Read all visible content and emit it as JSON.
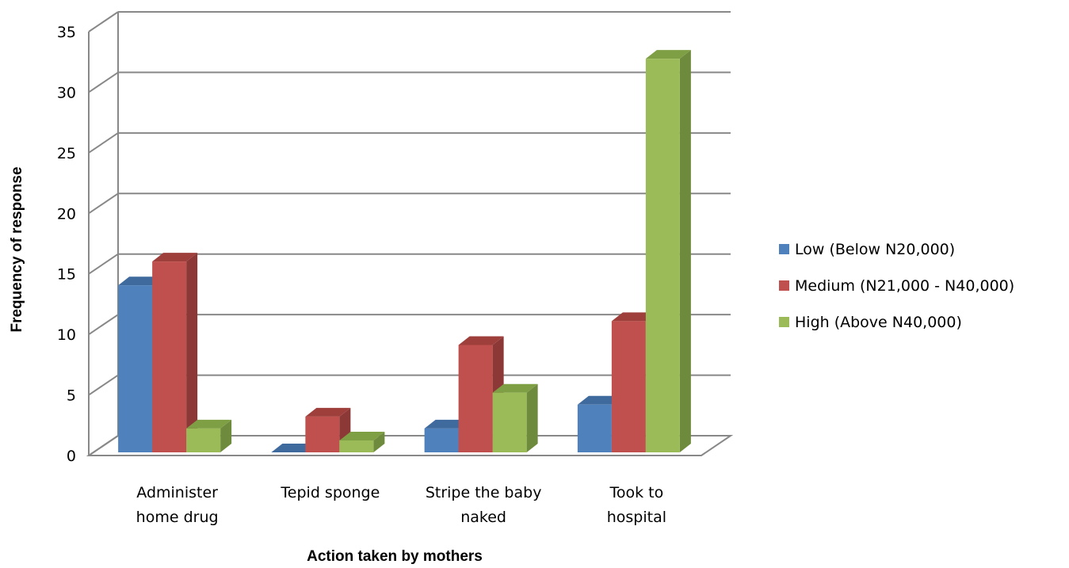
{
  "chart_data": {
    "type": "bar",
    "categories": [
      [
        "Administer",
        "home drug"
      ],
      [
        "Tepid sponge"
      ],
      [
        "Stripe the baby",
        "naked"
      ],
      [
        "Took to",
        "hospital"
      ]
    ],
    "series": [
      {
        "name": "Low (Below N20,000)",
        "values": [
          14,
          0,
          2,
          4
        ],
        "color": "#4f81bd",
        "side_color": "#385d8a",
        "top_color": "#3f6a9e"
      },
      {
        "name": "Medium (N21,000 - N40,000)",
        "values": [
          16,
          3,
          9,
          11
        ],
        "color": "#c0504d",
        "side_color": "#8c3836",
        "top_color": "#9e3f3c"
      },
      {
        "name": "High (Above N40,000)",
        "values": [
          2,
          1,
          5,
          33
        ],
        "color": "#9bbb59",
        "side_color": "#6e8a3c",
        "top_color": "#7f9f45"
      }
    ],
    "xlabel": "Action taken by mothers",
    "ylabel": "Frequency of response",
    "ylim": [
      0,
      35
    ],
    "yticks": [
      "0",
      "5",
      "10",
      "15",
      "20",
      "25",
      "30",
      "35"
    ],
    "grid": true,
    "legend_position": "right",
    "three_d": true
  }
}
